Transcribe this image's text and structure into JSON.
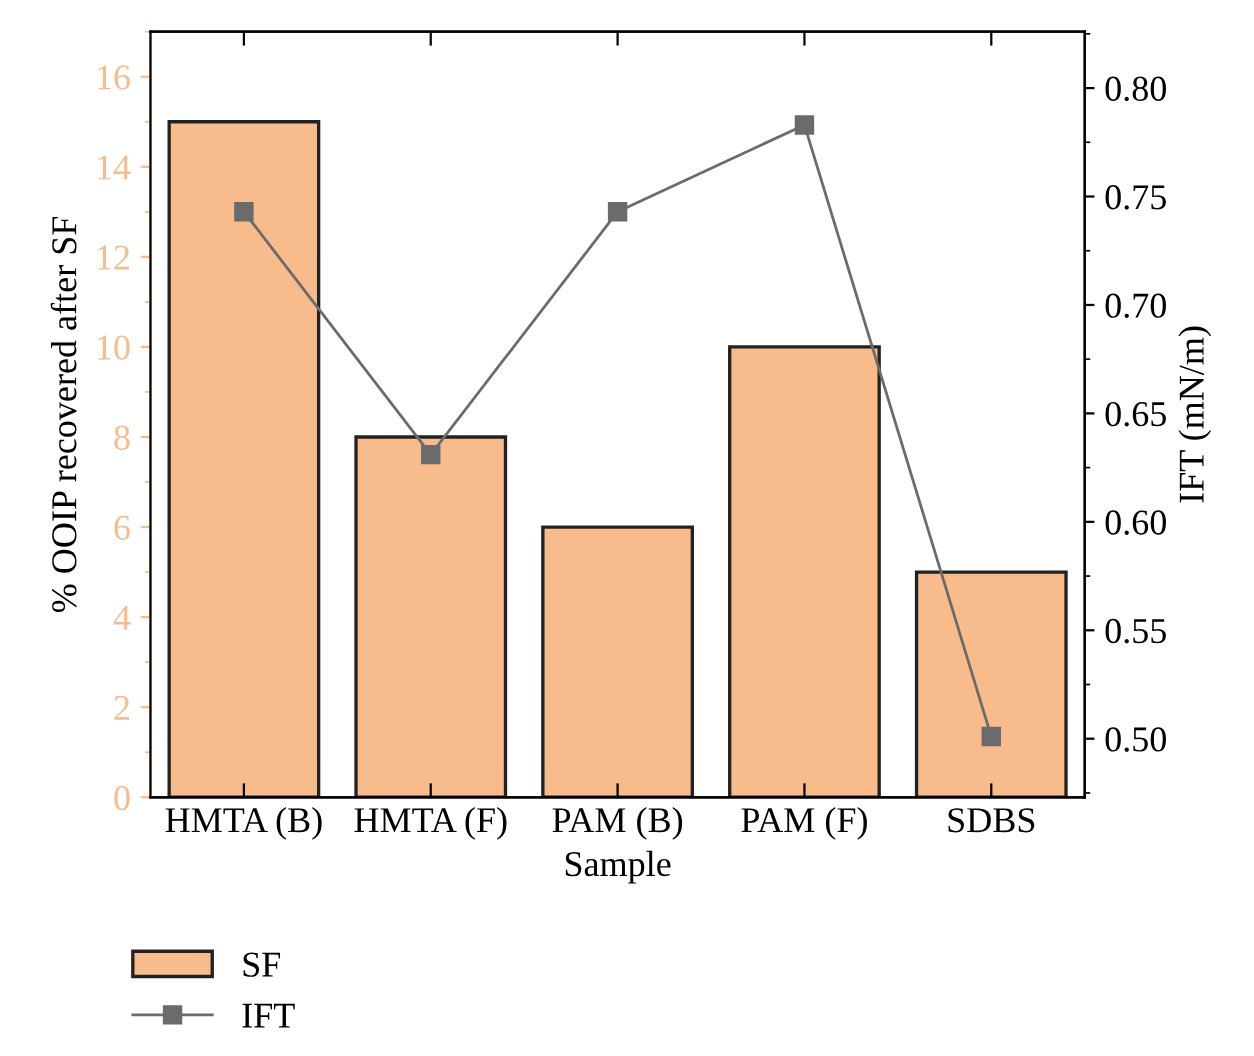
{
  "chart_data": {
    "type": "bar",
    "xlabel": "Sample",
    "ylabel": "% OOIP recovered after SF",
    "y2label": "IFT (mN/m)",
    "categories": [
      "HMTA (B)",
      "HMTA (F)",
      "PAM (B)",
      "PAM (F)",
      "SDBS"
    ],
    "series": [
      {
        "name": "SF",
        "color": "#f8bb8c",
        "values": [
          15,
          8,
          6,
          10,
          5
        ]
      },
      {
        "name": "IFT",
        "type": "line",
        "axis": "y2",
        "color": "#6b6b6b",
        "marker": "square",
        "values": [
          0.743,
          0.631,
          0.743,
          0.783,
          0.501
        ]
      }
    ],
    "ylim": [
      0,
      17
    ],
    "yticks": [
      0,
      2,
      4,
      6,
      8,
      10,
      12,
      14,
      16
    ],
    "y2lim": [
      0.473,
      0.826
    ],
    "y2ticks": [
      {
        "value": 0.5,
        "label": "0.50"
      },
      0.55,
      {
        "value": 0.6,
        "label": "0.60"
      },
      0.65,
      {
        "value": 0.7,
        "label": "0.70"
      },
      0.75,
      {
        "value": 0.8,
        "label": "0.80"
      }
    ],
    "legend": "bottom",
    "grid": false
  }
}
